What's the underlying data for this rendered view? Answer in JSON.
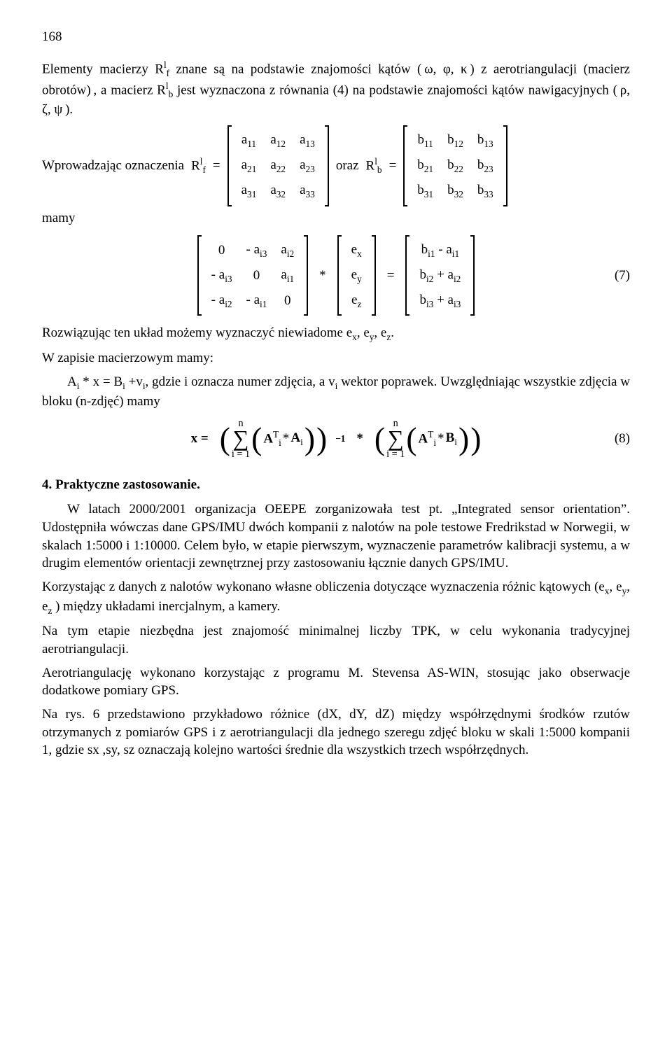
{
  "pageNumber": "168",
  "para1": {
    "t1": "Elementy macierzy R",
    "sup1": "l",
    "sub1": "f",
    "t2": " znane są na podstawie znajomości kątów ( ω, φ, κ ) z aerotriangulacji (macierz obrotów) , a macierz R",
    "sup2": "l",
    "sub2": "b",
    "t3": " jest wyznaczona z równania (4)  na podstawie znajomości kątów nawigacyjnych ( ρ, ζ, ψ )."
  },
  "intro": {
    "lead": "Wprowadzając  oznaczenia",
    "Rf": "R",
    "Rf_sup": "l",
    "Rf_sub": "f",
    "eq": "=",
    "oraz": "oraz",
    "Rb": "R",
    "Rb_sup": "l",
    "Rb_sub": "b",
    "mamy": "mamy"
  },
  "matA": [
    [
      "a",
      "11",
      "a",
      "12",
      "a",
      "13"
    ],
    [
      "a",
      "21",
      "a",
      "22",
      "a",
      "23"
    ],
    [
      "a",
      "31",
      "a",
      "32",
      "a",
      "33"
    ]
  ],
  "matB": [
    [
      "b",
      "11",
      "b",
      "12",
      "b",
      "13"
    ],
    [
      "b",
      "21",
      "b",
      "22",
      "b",
      "23"
    ],
    [
      "b",
      "31",
      "b",
      "32",
      "b",
      "33"
    ]
  ],
  "eq7": {
    "lhs": [
      [
        "0",
        "- a_i3",
        "a_i2"
      ],
      [
        "- a_i3",
        "0",
        "a_i1"
      ],
      [
        "- a_i2",
        "- a_i1",
        "0"
      ]
    ],
    "star": "*",
    "evec": [
      "e_x",
      "e_y",
      "e_z"
    ],
    "eq": "=",
    "rhs": [
      "b_i1 - a_i1",
      "b_i2 + a_i2",
      "b_i3 + a_i3"
    ],
    "num": "(7)"
  },
  "para2": {
    "t1": "Rozwiązując ten układ możemy wyznaczyć niewiadome e",
    "s1": "x",
    "t2": ", e",
    "s2": "y",
    "t3": ", e",
    "s3": "z",
    "t4": ".",
    "line2": "W zapisie macierzowym mamy:",
    "line3a": "A",
    "l3s1": "i",
    "line3b": "  *  x  =  B",
    "l3s2": "i",
    "line3c": "  +v",
    "l3s3": "i",
    "line3d": ",   gdzie i oznacza numer zdjęcia, a v",
    "l3s4": "i",
    "line3e": " wektor poprawek. Uwzględniając wszystkie zdjęcia w bloku (n-zdjęć) mamy"
  },
  "eq8": {
    "x_eq": "x =",
    "sum_top": "n",
    "sum_bot": "i = 1",
    "term1a": "A",
    "term1_sup": "T",
    "term1_sub": "i",
    "star": "*",
    "term1b": "A",
    "term1b_sub": "i",
    "exp": "−1",
    "term2a": "A",
    "term2b": "B",
    "term2b_sub": "i",
    "num": "(8)"
  },
  "section4": "4. Praktyczne zastosowanie.",
  "para3": "W latach 2000/2001 organizacja OEEPE zorganizowała test pt. „Integrated sensor orientation”. Udostępniła wówczas dane GPS/IMU dwóch kompanii z nalotów na pole testowe Fredrikstad w Norwegii, w skalach 1:5000 i 1:10000. Celem było, w etapie pierwszym, wyznaczenie parametrów kalibracji systemu, a w drugim elementów orientacji zewnętrznej  przy zastosowaniu łącznie danych GPS/IMU.",
  "para4": {
    "a": "Korzystając z danych z nalotów wykonano własne obliczenia dotyczące wyznaczenia różnic kątowych (e",
    "s1": "x",
    "b": ", e",
    "s2": "y",
    "c": ", e",
    "s3": "z",
    "d": " ) między układami inercjalnym, a kamery."
  },
  "para5": "Na tym etapie niezbędna jest znajomość minimalnej liczby TPK, w celu wykonania tradycyjnej aerotriangulacji.",
  "para6": "Aerotriangulację wykonano korzystając z programu M. Stevensa AS-WIN, stosując jako obserwacje dodatkowe pomiary GPS.",
  "para7": "Na rys. 6 przedstawiono przykładowo różnice (dX, dY, dZ) między współrzędnymi środków rzutów otrzymanych z pomiarów GPS i z aerotriangulacji dla jednego szeregu zdjęć bloku w skali 1:5000 kompanii 1, gdzie sx ,sy, sz oznaczają kolejno wartości średnie dla wszystkich trzech współrzędnych."
}
